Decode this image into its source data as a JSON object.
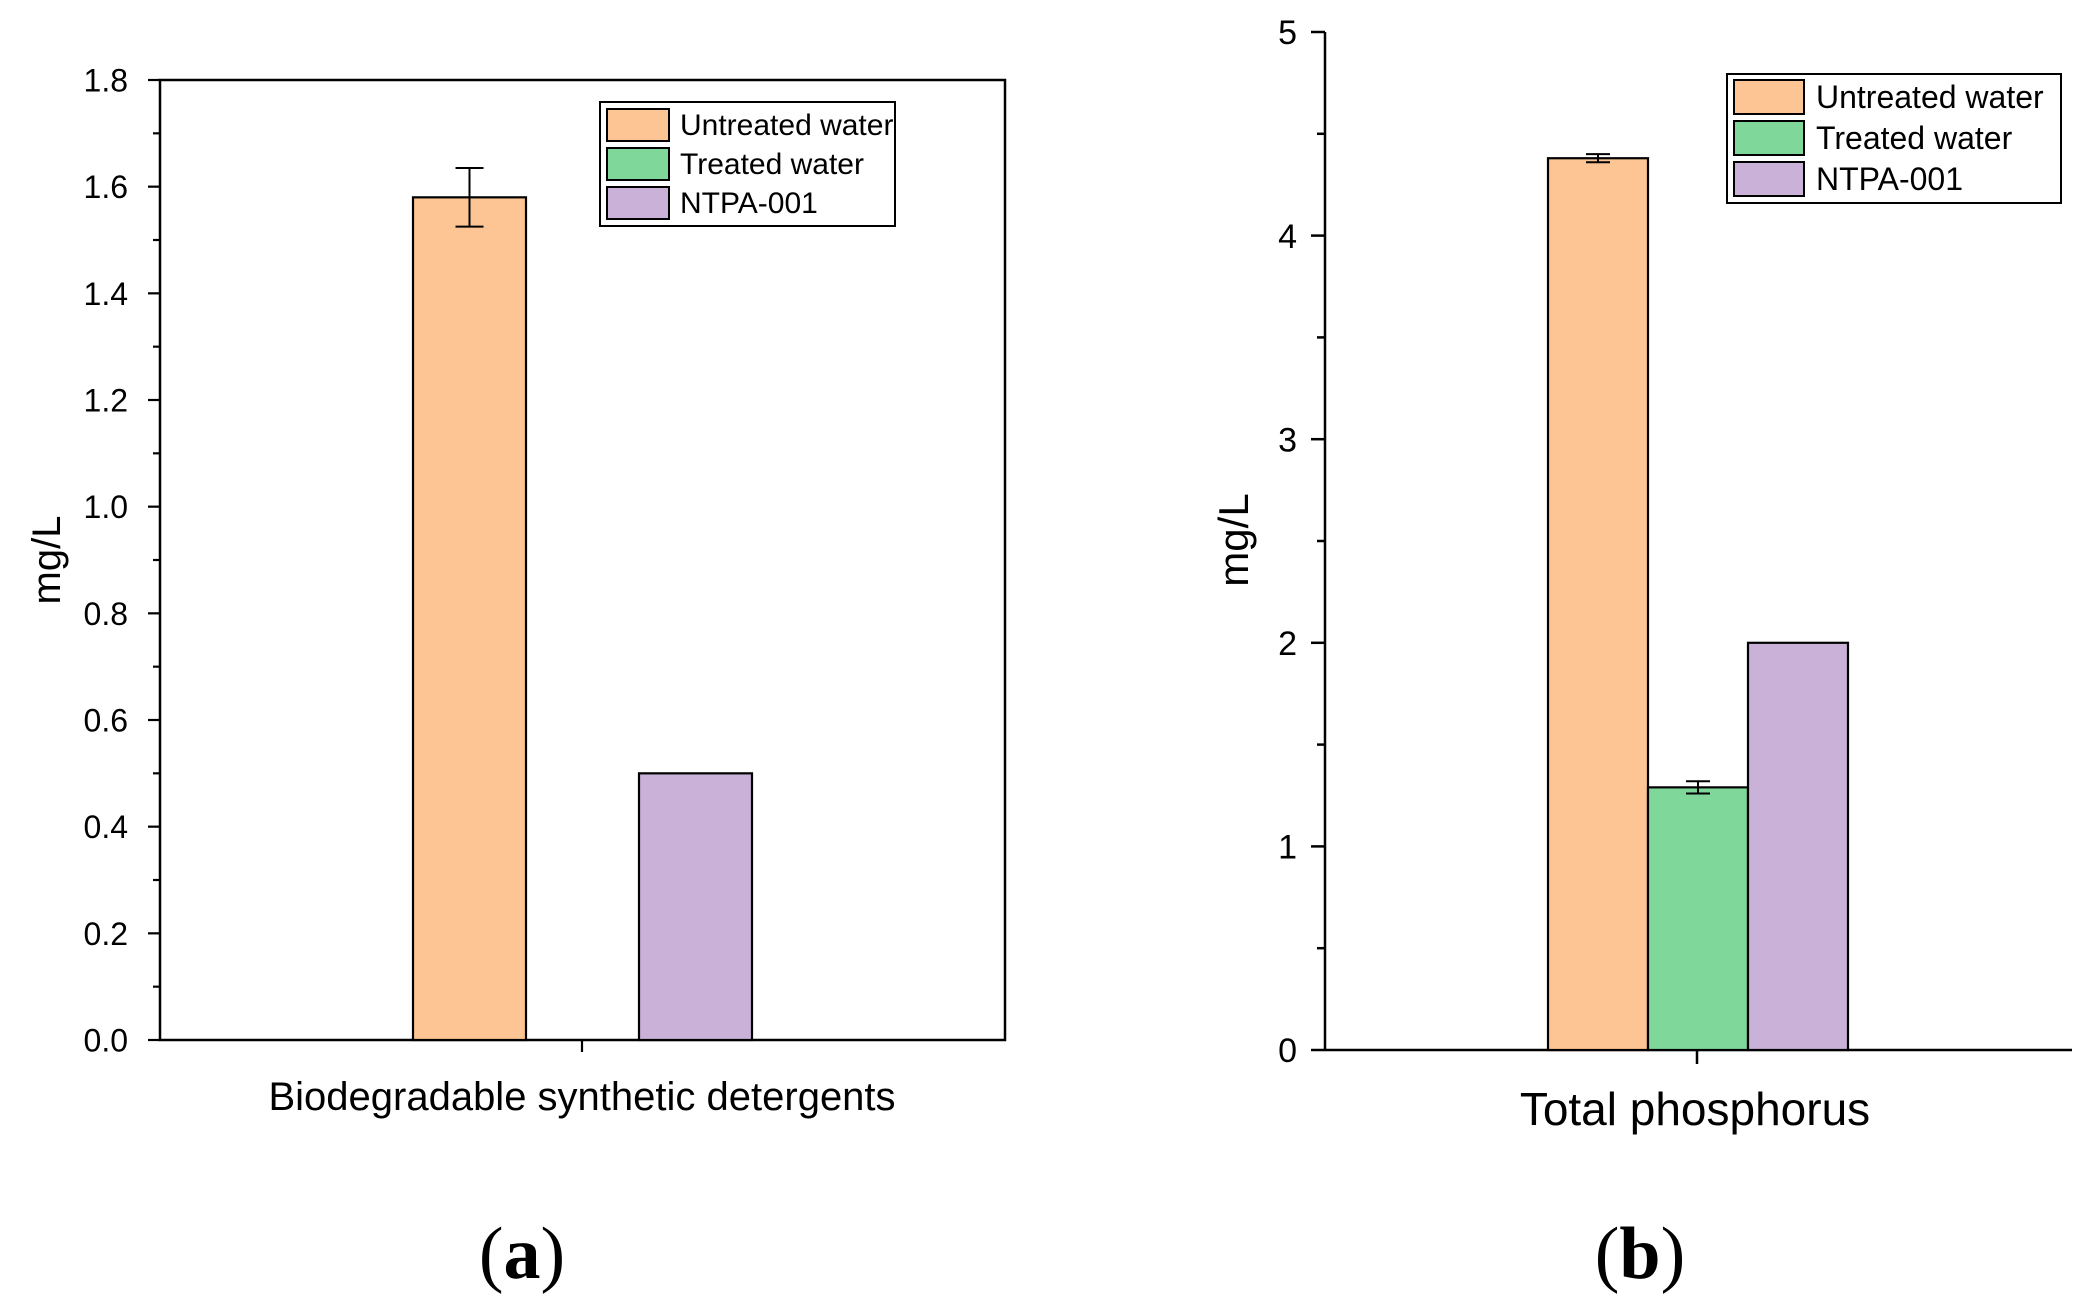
{
  "colors": {
    "untreated": "#fdc593",
    "treated": "#7fd89a",
    "ntpa": "#c9b1d8",
    "outline": "#000000"
  },
  "chart_data": [
    {
      "type": "bar",
      "panel": "(a)",
      "panel_letter": "a",
      "title": "",
      "xlabel": "Biodegradable synthetic detergents",
      "ylabel": "mg/L",
      "ylim": [
        0,
        1.8
      ],
      "yticks": [
        "0.0",
        "0.2",
        "0.4",
        "0.6",
        "0.8",
        "1.0",
        "1.2",
        "1.4",
        "1.6",
        "1.8"
      ],
      "categories": [
        "Biodegradable synthetic detergents"
      ],
      "legend_position": "top-right",
      "legend": [
        "Untreated water",
        "Treated water",
        "NTPA-001"
      ],
      "series": [
        {
          "name": "Untreated water",
          "values": [
            1.58
          ],
          "error": [
            0.055
          ]
        },
        {
          "name": "Treated water",
          "values": [
            0
          ],
          "error": [
            0
          ]
        },
        {
          "name": "NTPA-001",
          "values": [
            0.5
          ],
          "error": [
            0
          ]
        }
      ]
    },
    {
      "type": "bar",
      "panel": "(b)",
      "panel_letter": "b",
      "title": "",
      "xlabel": "Total phosphorus",
      "ylabel": "mg/L",
      "ylim": [
        0,
        5
      ],
      "yticks": [
        "0",
        "1",
        "2",
        "3",
        "4",
        "5"
      ],
      "categories": [
        "Total phosphorus"
      ],
      "legend_position": "top-right",
      "legend": [
        "Untreated water",
        "Treated water",
        "NTPA-001"
      ],
      "series": [
        {
          "name": "Untreated water",
          "values": [
            4.38
          ],
          "error": [
            0.02
          ]
        },
        {
          "name": "Treated water",
          "values": [
            1.29
          ],
          "error": [
            0.03
          ]
        },
        {
          "name": "NTPA-001",
          "values": [
            2.0
          ],
          "error": [
            0
          ]
        }
      ]
    }
  ]
}
